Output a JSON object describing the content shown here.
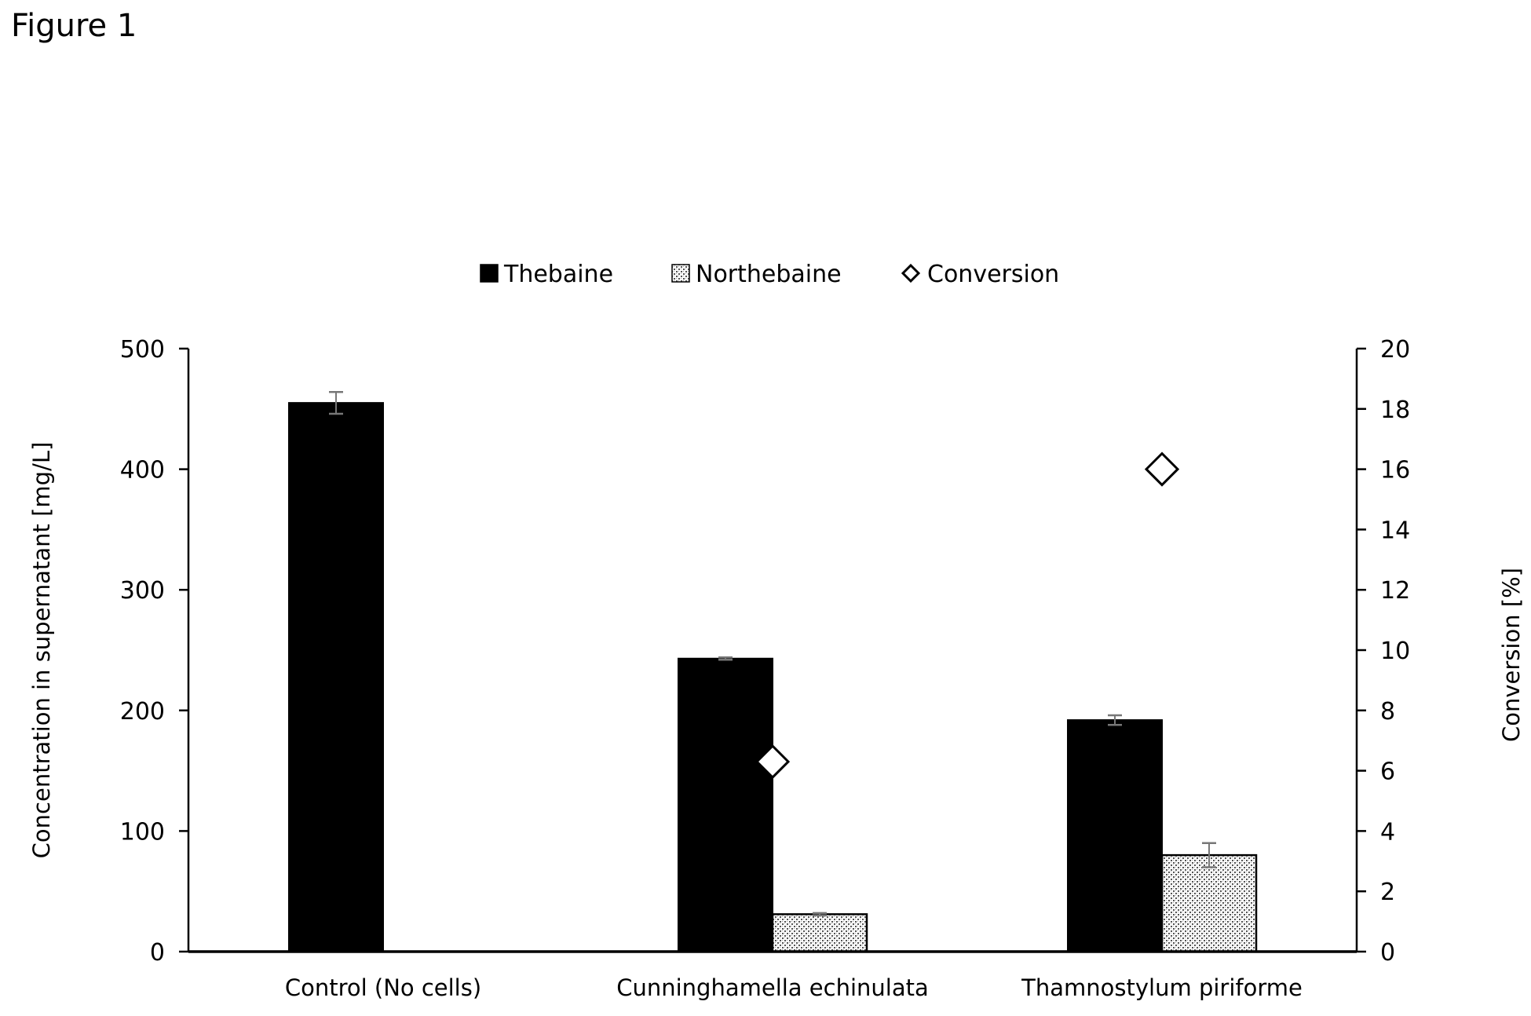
{
  "figure_label": "Figure 1",
  "colors": {
    "thebaine": "#000000",
    "northebaine_bg": "#ffffff",
    "northebaine_pattern": "#555555",
    "axis": "#000000"
  },
  "chart_data": {
    "type": "bar",
    "categories": [
      "Control (No cells)",
      "Cunninghamella echinulata",
      "Thamnostylum piriforme"
    ],
    "series": [
      {
        "name": "Thebaine",
        "axis": "left",
        "values": [
          455,
          243,
          192
        ],
        "errors": [
          9,
          1,
          4
        ]
      },
      {
        "name": "Northebaine",
        "axis": "left",
        "values": [
          null,
          31,
          80
        ],
        "errors": [
          null,
          1,
          10
        ]
      },
      {
        "name": "Conversion",
        "axis": "right",
        "marker": "diamond",
        "values": [
          null,
          6.3,
          16
        ]
      }
    ],
    "ylabel": "Concentration in supernatant [mg/L]",
    "ylabel_right": "Conversion [%]",
    "ylim": [
      0,
      500
    ],
    "yticks": [
      0,
      100,
      200,
      300,
      400,
      500
    ],
    "ylim_right": [
      0,
      20
    ],
    "yticks_right": [
      0,
      2,
      4,
      6,
      8,
      10,
      12,
      14,
      16,
      18,
      20
    ],
    "legend_position": "top-center",
    "grid": false
  }
}
